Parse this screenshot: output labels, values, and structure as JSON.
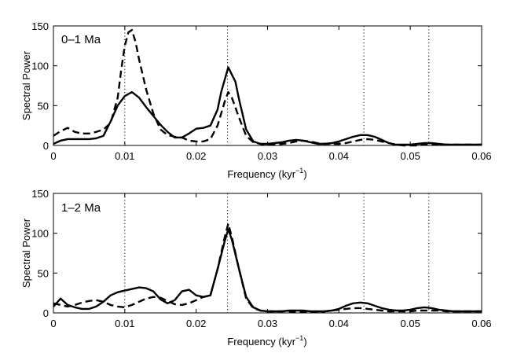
{
  "chart_data": [
    {
      "type": "line",
      "panel_label": "0–1 Ma",
      "xlabel": "Frequency (kyr",
      "xlabel_sup": "−1",
      "xlabel_close": ")",
      "ylabel": "Spectral Power",
      "xlim": [
        0,
        0.06
      ],
      "ylim": [
        0,
        150
      ],
      "xticks": [
        0,
        0.01,
        0.02,
        0.03,
        0.04,
        0.05,
        0.06
      ],
      "xtick_labels": [
        "0",
        "0.01",
        "0.02",
        "0.03",
        "0.04",
        "0.05",
        "0.06"
      ],
      "yticks": [
        0,
        50,
        100,
        150
      ],
      "ytick_labels": [
        "0",
        "50",
        "100",
        "150"
      ],
      "reference_lines_x": [
        0.01,
        0.0244,
        0.0435,
        0.0526
      ],
      "series": [
        {
          "name": "solid",
          "style": "solid",
          "x": [
            0,
            0.001,
            0.002,
            0.003,
            0.004,
            0.005,
            0.006,
            0.007,
            0.008,
            0.009,
            0.01,
            0.011,
            0.012,
            0.013,
            0.014,
            0.015,
            0.016,
            0.017,
            0.018,
            0.019,
            0.02,
            0.021,
            0.022,
            0.023,
            0.0235,
            0.0245,
            0.0255,
            0.026,
            0.027,
            0.028,
            0.029,
            0.03,
            0.031,
            0.032,
            0.033,
            0.034,
            0.035,
            0.036,
            0.037,
            0.038,
            0.039,
            0.04,
            0.041,
            0.042,
            0.043,
            0.044,
            0.045,
            0.046,
            0.047,
            0.048,
            0.049,
            0.05,
            0.051,
            0.052,
            0.053,
            0.054,
            0.055,
            0.056,
            0.057,
            0.058,
            0.059,
            0.06
          ],
          "y": [
            2,
            6,
            8,
            8,
            8,
            8,
            9,
            12,
            30,
            50,
            62,
            67,
            60,
            48,
            37,
            26,
            17,
            10,
            10,
            15,
            21,
            22,
            25,
            45,
            67,
            98,
            80,
            58,
            20,
            5,
            2,
            2,
            3,
            4,
            6,
            7,
            6,
            4,
            2,
            2,
            3,
            5,
            8,
            11,
            13,
            13,
            11,
            7,
            3,
            1,
            1,
            1,
            2,
            3,
            3,
            2,
            1,
            1,
            1,
            1,
            1,
            1
          ]
        },
        {
          "name": "dashed",
          "style": "dashed",
          "x": [
            0,
            0.001,
            0.002,
            0.003,
            0.004,
            0.005,
            0.006,
            0.007,
            0.008,
            0.009,
            0.0095,
            0.01,
            0.0105,
            0.011,
            0.0115,
            0.012,
            0.013,
            0.014,
            0.015,
            0.016,
            0.017,
            0.018,
            0.019,
            0.02,
            0.021,
            0.022,
            0.023,
            0.024,
            0.0245,
            0.025,
            0.026,
            0.027,
            0.028,
            0.029,
            0.03,
            0.031,
            0.032,
            0.033,
            0.034,
            0.035,
            0.036,
            0.037,
            0.038,
            0.039,
            0.04,
            0.041,
            0.042,
            0.043,
            0.044,
            0.045,
            0.046,
            0.047,
            0.048,
            0.049,
            0.05,
            0.051,
            0.052,
            0.053,
            0.054,
            0.055,
            0.056,
            0.057,
            0.058,
            0.059,
            0.06
          ],
          "y": [
            12,
            18,
            22,
            17,
            15,
            15,
            17,
            20,
            28,
            60,
            95,
            125,
            142,
            145,
            130,
            108,
            70,
            40,
            20,
            13,
            11,
            10,
            6,
            5,
            5,
            8,
            25,
            55,
            67,
            60,
            35,
            12,
            4,
            2,
            1,
            1,
            2,
            3,
            5,
            6,
            5,
            3,
            2,
            2,
            2,
            3,
            5,
            7,
            8,
            7,
            5,
            3,
            1,
            0,
            0,
            0,
            1,
            1,
            1,
            1,
            1,
            1,
            1,
            1,
            1
          ]
        }
      ]
    },
    {
      "type": "line",
      "panel_label": "1–2 Ma",
      "xlabel": "Frequency (kyr",
      "xlabel_sup": "−1",
      "xlabel_close": ")",
      "ylabel": "Spectral Power",
      "xlim": [
        0,
        0.06
      ],
      "ylim": [
        0,
        150
      ],
      "xticks": [
        0,
        0.01,
        0.02,
        0.03,
        0.04,
        0.05,
        0.06
      ],
      "xtick_labels": [
        "0",
        "0.01",
        "0.02",
        "0.03",
        "0.04",
        "0.05",
        "0.06"
      ],
      "yticks": [
        0,
        50,
        100,
        150
      ],
      "ytick_labels": [
        "0",
        "50",
        "100",
        "150"
      ],
      "reference_lines_x": [
        0.01,
        0.0244,
        0.0435,
        0.0526
      ],
      "series": [
        {
          "name": "solid",
          "style": "solid",
          "x": [
            0,
            0.001,
            0.002,
            0.003,
            0.004,
            0.005,
            0.006,
            0.007,
            0.008,
            0.009,
            0.01,
            0.011,
            0.012,
            0.013,
            0.014,
            0.015,
            0.016,
            0.017,
            0.018,
            0.019,
            0.02,
            0.021,
            0.022,
            0.023,
            0.024,
            0.0245,
            0.025,
            0.026,
            0.027,
            0.028,
            0.029,
            0.03,
            0.031,
            0.032,
            0.033,
            0.034,
            0.035,
            0.036,
            0.037,
            0.038,
            0.039,
            0.04,
            0.041,
            0.042,
            0.043,
            0.044,
            0.045,
            0.046,
            0.047,
            0.048,
            0.049,
            0.05,
            0.051,
            0.052,
            0.053,
            0.054,
            0.055,
            0.056,
            0.057,
            0.058,
            0.059,
            0.06
          ],
          "y": [
            8,
            18,
            10,
            7,
            5,
            5,
            8,
            14,
            22,
            26,
            28,
            30,
            32,
            31,
            27,
            17,
            12,
            16,
            27,
            29,
            22,
            20,
            22,
            55,
            90,
            105,
            92,
            55,
            20,
            7,
            3,
            2,
            2,
            2,
            3,
            3,
            3,
            2,
            2,
            2,
            3,
            5,
            9,
            12,
            13,
            12,
            9,
            6,
            4,
            3,
            3,
            4,
            6,
            7,
            6,
            4,
            3,
            2,
            2,
            2,
            2,
            2
          ]
        },
        {
          "name": "dashed",
          "style": "dashed",
          "x": [
            0,
            0.001,
            0.002,
            0.003,
            0.004,
            0.005,
            0.006,
            0.007,
            0.008,
            0.009,
            0.01,
            0.011,
            0.012,
            0.013,
            0.014,
            0.015,
            0.016,
            0.017,
            0.018,
            0.019,
            0.02,
            0.021,
            0.022,
            0.023,
            0.024,
            0.0245,
            0.025,
            0.026,
            0.027,
            0.028,
            0.029,
            0.03,
            0.031,
            0.032,
            0.033,
            0.034,
            0.035,
            0.036,
            0.037,
            0.038,
            0.039,
            0.04,
            0.041,
            0.042,
            0.043,
            0.044,
            0.045,
            0.046,
            0.047,
            0.048,
            0.049,
            0.05,
            0.051,
            0.052,
            0.053,
            0.054,
            0.055,
            0.056,
            0.057,
            0.058,
            0.059,
            0.06
          ],
          "y": [
            12,
            10,
            8,
            10,
            13,
            15,
            16,
            14,
            10,
            8,
            7,
            10,
            14,
            18,
            20,
            19,
            15,
            11,
            10,
            12,
            16,
            20,
            22,
            55,
            95,
            112,
            95,
            55,
            18,
            6,
            3,
            2,
            2,
            2,
            2,
            1,
            1,
            1,
            1,
            2,
            3,
            4,
            5,
            6,
            6,
            5,
            4,
            3,
            2,
            2,
            2,
            2,
            3,
            3,
            3,
            3,
            2,
            2,
            2,
            2,
            2,
            2
          ]
        }
      ]
    }
  ]
}
